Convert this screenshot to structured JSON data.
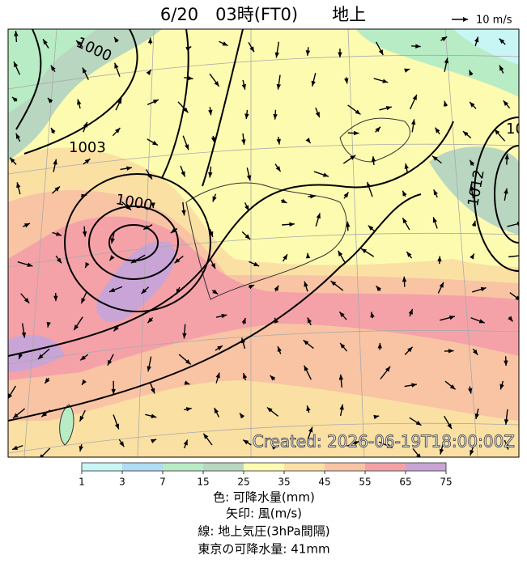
{
  "header": {
    "title": "6/20　03時(FT0)　　地上",
    "wind_scale": "10 m/s"
  },
  "map": {
    "contour_labels": [
      "1000",
      "1003",
      "1000",
      "1012",
      "10"
    ],
    "stamp": "Created: 2026-06-19T18:00:00Z"
  },
  "colorbar": {
    "ticks": [
      1,
      3,
      7,
      15,
      25,
      35,
      45,
      55,
      65,
      75
    ],
    "colors": [
      "#c8f6f4",
      "#b0dcf4",
      "#b7ecc4",
      "#b9d6c0",
      "#fdfbb0",
      "#fbe0a4",
      "#f8c4a4",
      "#f4a2a8",
      "#c9a4d6"
    ]
  },
  "captions": [
    "色: 可降水量(mm)",
    "矢印: 風(m/s)",
    "線: 地上気圧(3hPa間隔)",
    "東京の可降水量: 41mm"
  ]
}
